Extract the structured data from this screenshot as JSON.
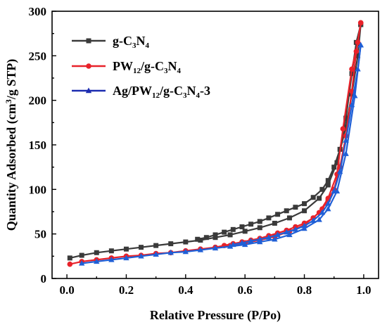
{
  "chart_data": {
    "type": "line",
    "xlabel": "Relative Pressure (P/Po)",
    "ylabel": "Quantity Adsorbed (cm³/g STP)",
    "ylabel_parts": {
      "pre": "Quantity Adsorbed (cm",
      "sup": "3",
      "post": "/g STP)"
    },
    "xlim": [
      -0.05,
      1.05
    ],
    "ylim": [
      0,
      300
    ],
    "xticks": [
      "0.0",
      "0.2",
      "0.4",
      "0.6",
      "0.8",
      "1.0"
    ],
    "yticks": [
      "0",
      "50",
      "100",
      "150",
      "200",
      "250",
      "300"
    ],
    "legend_position": "top-left",
    "series": [
      {
        "name": "g-C3N4",
        "legend_parts": [
          [
            "g-C",
            ""
          ],
          [
            "3",
            "sub"
          ],
          [
            "N",
            ""
          ],
          [
            "4",
            "sub"
          ]
        ],
        "color": "#3a3a3a",
        "marker": "square",
        "adsorption": [
          [
            0.01,
            23
          ],
          [
            0.05,
            26
          ],
          [
            0.1,
            29
          ],
          [
            0.15,
            31
          ],
          [
            0.2,
            33
          ],
          [
            0.25,
            35
          ],
          [
            0.3,
            37
          ],
          [
            0.35,
            39
          ],
          [
            0.4,
            41
          ],
          [
            0.45,
            43
          ],
          [
            0.5,
            46
          ],
          [
            0.55,
            49
          ],
          [
            0.6,
            53
          ],
          [
            0.65,
            57
          ],
          [
            0.7,
            62
          ],
          [
            0.75,
            68
          ],
          [
            0.8,
            76
          ],
          [
            0.85,
            90
          ],
          [
            0.88,
            105
          ],
          [
            0.91,
            130
          ],
          [
            0.94,
            170
          ],
          [
            0.96,
            207
          ],
          [
            0.98,
            250
          ],
          [
            0.99,
            285
          ]
        ],
        "desorption": [
          [
            0.99,
            285
          ],
          [
            0.975,
            265
          ],
          [
            0.96,
            230
          ],
          [
            0.94,
            180
          ],
          [
            0.92,
            145
          ],
          [
            0.9,
            125
          ],
          [
            0.88,
            110
          ],
          [
            0.86,
            100
          ],
          [
            0.83,
            91
          ],
          [
            0.8,
            84
          ],
          [
            0.77,
            80
          ],
          [
            0.74,
            76
          ],
          [
            0.71,
            72
          ],
          [
            0.68,
            68
          ],
          [
            0.65,
            64
          ],
          [
            0.62,
            61
          ],
          [
            0.59,
            58
          ],
          [
            0.56,
            55
          ],
          [
            0.53,
            52
          ],
          [
            0.5,
            49
          ],
          [
            0.47,
            46
          ],
          [
            0.44,
            44
          ]
        ]
      },
      {
        "name": "PW12/g-C3N4",
        "legend_parts": [
          [
            "PW",
            ""
          ],
          [
            "12",
            "sub"
          ],
          [
            "/g-C",
            ""
          ],
          [
            "3",
            "sub"
          ],
          [
            "N",
            ""
          ],
          [
            "4",
            "sub"
          ]
        ],
        "color": "#e8222a",
        "marker": "circle",
        "adsorption": [
          [
            0.01,
            16
          ],
          [
            0.05,
            19
          ],
          [
            0.1,
            21
          ],
          [
            0.15,
            23
          ],
          [
            0.2,
            25
          ],
          [
            0.25,
            26
          ],
          [
            0.3,
            28
          ],
          [
            0.35,
            29
          ],
          [
            0.4,
            31
          ],
          [
            0.45,
            33
          ],
          [
            0.5,
            35
          ],
          [
            0.55,
            37
          ],
          [
            0.6,
            40
          ],
          [
            0.65,
            43
          ],
          [
            0.7,
            47
          ],
          [
            0.75,
            53
          ],
          [
            0.8,
            60
          ],
          [
            0.85,
            74
          ],
          [
            0.88,
            90
          ],
          [
            0.91,
            117
          ],
          [
            0.93,
            168
          ],
          [
            0.96,
            235
          ],
          [
            0.98,
            265
          ],
          [
            0.99,
            287
          ]
        ],
        "desorption": [
          [
            0.99,
            287
          ],
          [
            0.975,
            255
          ],
          [
            0.96,
            210
          ],
          [
            0.94,
            160
          ],
          [
            0.92,
            125
          ],
          [
            0.9,
            100
          ],
          [
            0.88,
            88
          ],
          [
            0.86,
            78
          ],
          [
            0.83,
            68
          ],
          [
            0.8,
            62
          ],
          [
            0.77,
            58
          ],
          [
            0.74,
            54
          ],
          [
            0.71,
            51
          ],
          [
            0.68,
            48
          ],
          [
            0.65,
            45
          ],
          [
            0.62,
            43
          ],
          [
            0.59,
            41
          ],
          [
            0.56,
            39
          ],
          [
            0.53,
            37
          ],
          [
            0.5,
            35
          ]
        ]
      },
      {
        "name": "Ag/PW12/g-C3N4-3",
        "legend_parts": [
          [
            "Ag/PW",
            ""
          ],
          [
            "12",
            "sub"
          ],
          [
            "/g-C",
            ""
          ],
          [
            "3",
            "sub"
          ],
          [
            "N",
            ""
          ],
          [
            "4",
            "sub"
          ],
          [
            "-3",
            ""
          ]
        ],
        "color": "#1f5fd6",
        "legend_color": "#1c2cb0",
        "marker": "triangle",
        "adsorption": [
          [
            0.05,
            17
          ],
          [
            0.1,
            19
          ],
          [
            0.15,
            21
          ],
          [
            0.2,
            23
          ],
          [
            0.25,
            25
          ],
          [
            0.3,
            27
          ],
          [
            0.35,
            29
          ],
          [
            0.4,
            30
          ],
          [
            0.45,
            32
          ],
          [
            0.5,
            34
          ],
          [
            0.55,
            36
          ],
          [
            0.6,
            38
          ],
          [
            0.65,
            41
          ],
          [
            0.7,
            44
          ],
          [
            0.75,
            49
          ],
          [
            0.8,
            56
          ],
          [
            0.85,
            66
          ],
          [
            0.88,
            78
          ],
          [
            0.91,
            98
          ],
          [
            0.94,
            140
          ],
          [
            0.97,
            205
          ],
          [
            0.99,
            262
          ]
        ],
        "desorption": [
          [
            0.99,
            262
          ],
          [
            0.98,
            235
          ],
          [
            0.96,
            195
          ],
          [
            0.94,
            155
          ],
          [
            0.92,
            120
          ],
          [
            0.9,
            98
          ],
          [
            0.88,
            84
          ],
          [
            0.86,
            74
          ],
          [
            0.83,
            65
          ],
          [
            0.8,
            59
          ],
          [
            0.77,
            55
          ],
          [
            0.74,
            52
          ],
          [
            0.71,
            49
          ],
          [
            0.68,
            46
          ],
          [
            0.65,
            44
          ],
          [
            0.62,
            42
          ],
          [
            0.59,
            40
          ],
          [
            0.56,
            38
          ]
        ]
      }
    ]
  }
}
